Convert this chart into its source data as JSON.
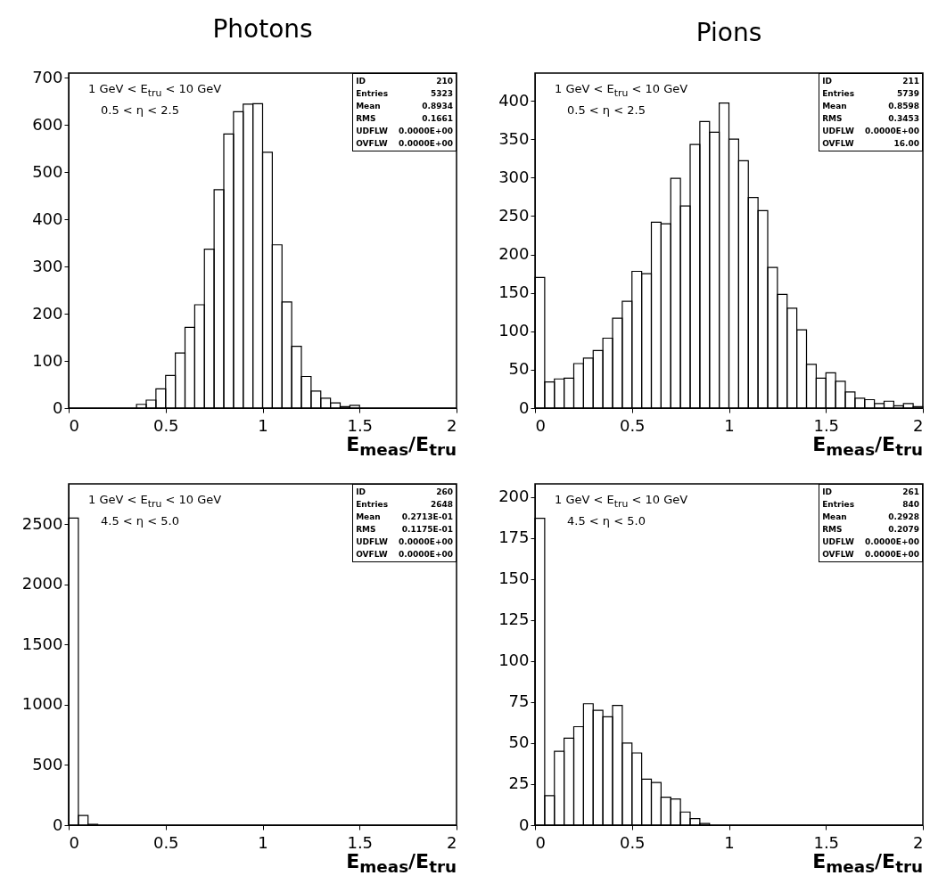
{
  "chart_data": [
    {
      "type": "histogram",
      "title": "Photons",
      "xlabel": "E$_{meas}$/E$_{tru}$",
      "color": "#000000",
      "grid": false,
      "bins": [
        0,
        0.05,
        0.1,
        0.15,
        0.2,
        0.25,
        0.3,
        0.35,
        0.4,
        0.45,
        0.5,
        0.55,
        0.6,
        0.65,
        0.7,
        0.75,
        0.8,
        0.85,
        0.9,
        0.95,
        1,
        1.05,
        1.1,
        1.15,
        1.2,
        1.25,
        1.3,
        1.35,
        1.4,
        1.45,
        1.5,
        1.55,
        1.6,
        1.65,
        1.7,
        1.75,
        1.8,
        1.85,
        1.9,
        1.95,
        2
      ],
      "values": [
        0,
        0,
        0,
        0,
        0,
        0,
        0,
        8,
        17,
        41,
        69,
        117,
        171,
        219,
        337,
        463,
        581,
        628,
        644,
        645,
        542,
        346,
        225,
        131,
        67,
        36,
        21,
        11,
        3,
        6,
        0,
        0,
        0,
        0,
        0,
        0,
        0,
        0,
        0,
        0
      ],
      "xlim": [
        0,
        2
      ],
      "xticks": [
        0,
        0.5,
        1,
        1.5,
        2
      ],
      "ylim": [
        0,
        710
      ],
      "yticks": [
        0,
        100,
        200,
        300,
        400,
        500,
        600,
        700
      ],
      "annotations": [
        "1 GeV < E$_{tru}$ < 10 GeV",
        "0.5 < η < 2.5",
        "ID",
        "210",
        "Entries",
        "5323",
        "Mean",
        "0.8934",
        "RMS",
        "0.1661",
        "UDFLW",
        "0.0000E+00",
        "OVFLW",
        "0.0000E+00"
      ]
    },
    {
      "type": "histogram",
      "title": "Pions",
      "xlabel": "E$_{meas}$/E$_{tru}$",
      "color": "#000000",
      "grid": false,
      "bins": [
        0,
        0.05,
        0.1,
        0.15,
        0.2,
        0.25,
        0.3,
        0.35,
        0.4,
        0.45,
        0.5,
        0.55,
        0.6,
        0.65,
        0.7,
        0.75,
        0.8,
        0.85,
        0.9,
        0.95,
        1,
        1.05,
        1.1,
        1.15,
        1.2,
        1.25,
        1.3,
        1.35,
        1.4,
        1.45,
        1.5,
        1.55,
        1.6,
        1.65,
        1.7,
        1.75,
        1.8,
        1.85,
        1.9,
        1.95,
        2
      ],
      "values": [
        170,
        34,
        38,
        39,
        58,
        65,
        75,
        91,
        117,
        139,
        178,
        175,
        242,
        240,
        299,
        263,
        343,
        373,
        359,
        397,
        350,
        322,
        274,
        257,
        183,
        148,
        130,
        102,
        57,
        39,
        46,
        35,
        21,
        13,
        11,
        6,
        9,
        3,
        6,
        2
      ],
      "xlim": [
        0,
        2
      ],
      "xticks": [
        0,
        0.5,
        1,
        1.5,
        2
      ],
      "ylim": [
        0,
        436
      ],
      "yticks": [
        0,
        50,
        100,
        150,
        200,
        250,
        300,
        350,
        400
      ],
      "annotations": [
        "1 GeV < E$_{tru}$ < 10 GeV",
        "0.5 < η < 2.5",
        "ID",
        "211",
        "Entries",
        "5739",
        "Mean",
        "0.8598",
        "RMS",
        "0.3453",
        "UDFLW",
        "0.0000E+00",
        "OVFLW",
        "16.00"
      ]
    },
    {
      "type": "histogram",
      "xlabel": "E$_{meas}$/E$_{tru}$",
      "color": "#000000",
      "grid": false,
      "bins": [
        0,
        0.05,
        0.1,
        0.15,
        0.2,
        0.25,
        0.3,
        0.35,
        0.4,
        0.45,
        0.5,
        0.55,
        0.6,
        0.65,
        0.7,
        0.75,
        0.8,
        0.85,
        0.9,
        0.95,
        1,
        1.05,
        1.1,
        1.15,
        1.2,
        1.25,
        1.3,
        1.35,
        1.4,
        1.45,
        1.5,
        1.55,
        1.6,
        1.65,
        1.7,
        1.75,
        1.8,
        1.85,
        1.9,
        1.95,
        2
      ],
      "values": [
        2551,
        81,
        7,
        0,
        0,
        0,
        0,
        0,
        0,
        0,
        0,
        0,
        0,
        0,
        0,
        0,
        0,
        0,
        0,
        0,
        0,
        0,
        0,
        0,
        0,
        0,
        0,
        0,
        0,
        0,
        0,
        0,
        0,
        0,
        0,
        0,
        0,
        0,
        0,
        0
      ],
      "xlim": [
        0,
        2
      ],
      "xticks": [
        0,
        0.5,
        1,
        1.5,
        2
      ],
      "ylim": [
        0,
        2835
      ],
      "yticks": [
        0,
        500,
        1000,
        1500,
        2000,
        2500
      ],
      "annotations": [
        "1 GeV < E$_{tru}$ < 10 GeV",
        "4.5 < η < 5.0",
        "ID",
        "260",
        "Entries",
        "2648",
        "Mean",
        "0.2713E-01",
        "RMS",
        "0.1175E-01",
        "UDFLW",
        "0.0000E+00",
        "OVFLW",
        "0.0000E+00"
      ]
    },
    {
      "type": "histogram",
      "xlabel": "E$_{meas}$/E$_{tru}$",
      "color": "#000000",
      "grid": false,
      "bins": [
        0,
        0.05,
        0.1,
        0.15,
        0.2,
        0.25,
        0.3,
        0.35,
        0.4,
        0.45,
        0.5,
        0.55,
        0.6,
        0.65,
        0.7,
        0.75,
        0.8,
        0.85,
        0.9,
        0.95,
        1,
        1.05,
        1.1,
        1.15,
        1.2,
        1.25,
        1.3,
        1.35,
        1.4,
        1.45,
        1.5,
        1.55,
        1.6,
        1.65,
        1.7,
        1.75,
        1.8,
        1.85,
        1.9,
        1.95,
        2
      ],
      "values": [
        187,
        18,
        45,
        53,
        60,
        74,
        70,
        66,
        73,
        50,
        44,
        28,
        26,
        17,
        16,
        8,
        4,
        1,
        0,
        0,
        0,
        0,
        0,
        0,
        0,
        0,
        0,
        0,
        0,
        0,
        0,
        0,
        0,
        0,
        0,
        0,
        0,
        0,
        0,
        0
      ],
      "xlim": [
        0,
        2
      ],
      "xticks": [
        0,
        0.5,
        1,
        1.5,
        2
      ],
      "ylim": [
        0,
        208
      ],
      "yticks": [
        0,
        25,
        50,
        75,
        100,
        125,
        150,
        175,
        200
      ],
      "annotations": [
        "1 GeV < E$_{tru}$ < 10 GeV",
        "4.5 < η < 5.0",
        "ID",
        "261",
        "Entries",
        "840",
        "Mean",
        "0.2928",
        "RMS",
        "0.2079",
        "UDFLW",
        "0.0000E+00",
        "OVFLW",
        "0.0000E+00"
      ]
    }
  ]
}
